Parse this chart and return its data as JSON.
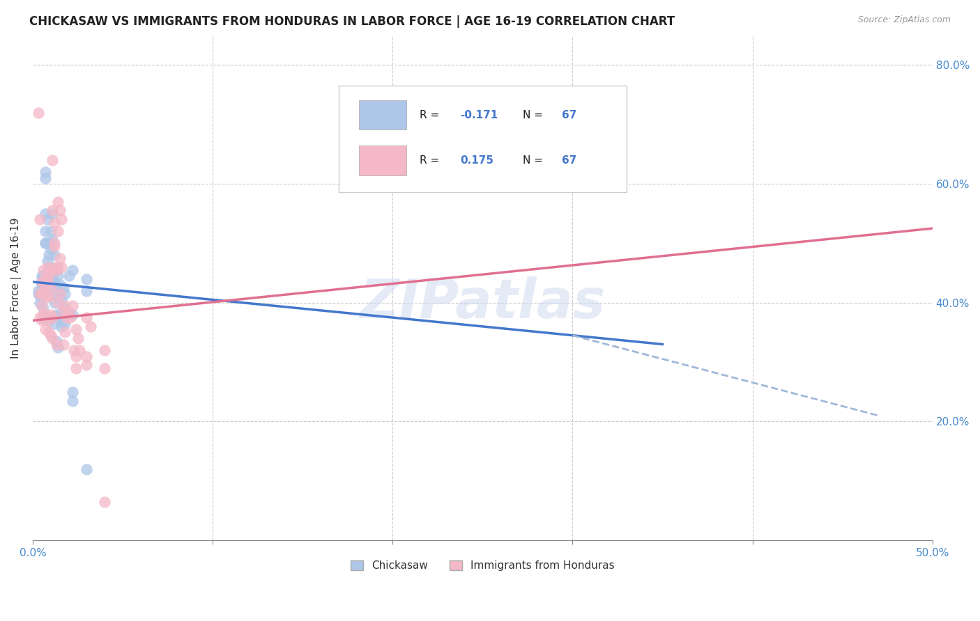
{
  "title": "CHICKASAW VS IMMIGRANTS FROM HONDURAS IN LABOR FORCE | AGE 16-19 CORRELATION CHART",
  "source": "Source: ZipAtlas.com",
  "ylabel": "In Labor Force | Age 16-19",
  "xlim": [
    0.0,
    0.5
  ],
  "ylim": [
    0.0,
    0.85
  ],
  "xtick_vals": [
    0.0,
    0.1,
    0.2,
    0.3,
    0.4,
    0.5
  ],
  "ytick_vals": [
    0.2,
    0.4,
    0.6,
    0.8
  ],
  "chickasaw_color": "#aec6e8",
  "honduras_color": "#f4b8c8",
  "blue_line_color": "#4477cc",
  "pink_line_color": "#e07090",
  "dashed_line_color": "#a0b8d8",
  "right_axis_color": "#4488cc",
  "watermark": "ZIPatlas",
  "chickasaw_points": [
    [
      0.003,
      0.415
    ],
    [
      0.003,
      0.42
    ],
    [
      0.004,
      0.4
    ],
    [
      0.004,
      0.415
    ],
    [
      0.005,
      0.43
    ],
    [
      0.005,
      0.41
    ],
    [
      0.005,
      0.44
    ],
    [
      0.005,
      0.43
    ],
    [
      0.005,
      0.445
    ],
    [
      0.006,
      0.42
    ],
    [
      0.006,
      0.445
    ],
    [
      0.006,
      0.39
    ],
    [
      0.006,
      0.375
    ],
    [
      0.006,
      0.435
    ],
    [
      0.007,
      0.62
    ],
    [
      0.007,
      0.61
    ],
    [
      0.007,
      0.55
    ],
    [
      0.007,
      0.5
    ],
    [
      0.007,
      0.52
    ],
    [
      0.007,
      0.5
    ],
    [
      0.008,
      0.47
    ],
    [
      0.008,
      0.44
    ],
    [
      0.008,
      0.42
    ],
    [
      0.008,
      0.54
    ],
    [
      0.008,
      0.5
    ],
    [
      0.009,
      0.455
    ],
    [
      0.009,
      0.48
    ],
    [
      0.009,
      0.445
    ],
    [
      0.009,
      0.37
    ],
    [
      0.01,
      0.5
    ],
    [
      0.01,
      0.46
    ],
    [
      0.01,
      0.43
    ],
    [
      0.01,
      0.52
    ],
    [
      0.01,
      0.49
    ],
    [
      0.011,
      0.44
    ],
    [
      0.011,
      0.55
    ],
    [
      0.011,
      0.505
    ],
    [
      0.011,
      0.45
    ],
    [
      0.012,
      0.48
    ],
    [
      0.012,
      0.435
    ],
    [
      0.012,
      0.4
    ],
    [
      0.012,
      0.365
    ],
    [
      0.013,
      0.455
    ],
    [
      0.013,
      0.42
    ],
    [
      0.013,
      0.38
    ],
    [
      0.013,
      0.335
    ],
    [
      0.014,
      0.445
    ],
    [
      0.014,
      0.41
    ],
    [
      0.014,
      0.375
    ],
    [
      0.014,
      0.325
    ],
    [
      0.015,
      0.43
    ],
    [
      0.015,
      0.38
    ],
    [
      0.016,
      0.405
    ],
    [
      0.016,
      0.36
    ],
    [
      0.017,
      0.425
    ],
    [
      0.017,
      0.39
    ],
    [
      0.018,
      0.415
    ],
    [
      0.018,
      0.365
    ],
    [
      0.02,
      0.445
    ],
    [
      0.02,
      0.38
    ],
    [
      0.022,
      0.455
    ],
    [
      0.022,
      0.38
    ],
    [
      0.03,
      0.44
    ],
    [
      0.03,
      0.42
    ],
    [
      0.022,
      0.25
    ],
    [
      0.022,
      0.235
    ],
    [
      0.03,
      0.12
    ]
  ],
  "honduras_points": [
    [
      0.003,
      0.72
    ],
    [
      0.004,
      0.415
    ],
    [
      0.004,
      0.54
    ],
    [
      0.004,
      0.375
    ],
    [
      0.005,
      0.435
    ],
    [
      0.005,
      0.415
    ],
    [
      0.005,
      0.395
    ],
    [
      0.005,
      0.37
    ],
    [
      0.006,
      0.455
    ],
    [
      0.006,
      0.435
    ],
    [
      0.006,
      0.415
    ],
    [
      0.006,
      0.38
    ],
    [
      0.007,
      0.44
    ],
    [
      0.007,
      0.42
    ],
    [
      0.007,
      0.38
    ],
    [
      0.007,
      0.355
    ],
    [
      0.008,
      0.46
    ],
    [
      0.008,
      0.435
    ],
    [
      0.008,
      0.41
    ],
    [
      0.008,
      0.37
    ],
    [
      0.009,
      0.445
    ],
    [
      0.009,
      0.41
    ],
    [
      0.009,
      0.375
    ],
    [
      0.009,
      0.35
    ],
    [
      0.01,
      0.455
    ],
    [
      0.01,
      0.425
    ],
    [
      0.01,
      0.38
    ],
    [
      0.01,
      0.345
    ],
    [
      0.011,
      0.64
    ],
    [
      0.011,
      0.555
    ],
    [
      0.011,
      0.375
    ],
    [
      0.011,
      0.34
    ],
    [
      0.012,
      0.535
    ],
    [
      0.012,
      0.495
    ],
    [
      0.012,
      0.5
    ],
    [
      0.012,
      0.46
    ],
    [
      0.013,
      0.455
    ],
    [
      0.013,
      0.33
    ],
    [
      0.014,
      0.57
    ],
    [
      0.014,
      0.52
    ],
    [
      0.014,
      0.46
    ],
    [
      0.014,
      0.4
    ],
    [
      0.015,
      0.555
    ],
    [
      0.015,
      0.475
    ],
    [
      0.015,
      0.415
    ],
    [
      0.016,
      0.54
    ],
    [
      0.016,
      0.46
    ],
    [
      0.017,
      0.385
    ],
    [
      0.017,
      0.33
    ],
    [
      0.018,
      0.395
    ],
    [
      0.018,
      0.35
    ],
    [
      0.019,
      0.375
    ],
    [
      0.02,
      0.385
    ],
    [
      0.021,
      0.375
    ],
    [
      0.022,
      0.395
    ],
    [
      0.023,
      0.32
    ],
    [
      0.024,
      0.31
    ],
    [
      0.024,
      0.29
    ],
    [
      0.024,
      0.355
    ],
    [
      0.025,
      0.34
    ],
    [
      0.026,
      0.32
    ],
    [
      0.03,
      0.295
    ],
    [
      0.03,
      0.375
    ],
    [
      0.03,
      0.31
    ],
    [
      0.032,
      0.36
    ],
    [
      0.04,
      0.32
    ],
    [
      0.04,
      0.29
    ],
    [
      0.04,
      0.065
    ]
  ],
  "chickasaw_line": {
    "x0": 0.0,
    "y0": 0.435,
    "x1": 0.35,
    "y1": 0.33
  },
  "honduras_line": {
    "x0": 0.0,
    "y0": 0.37,
    "x1": 0.5,
    "y1": 0.525
  },
  "dashed_line": {
    "x0": 0.3,
    "y0": 0.345,
    "x1": 0.47,
    "y1": 0.21
  }
}
